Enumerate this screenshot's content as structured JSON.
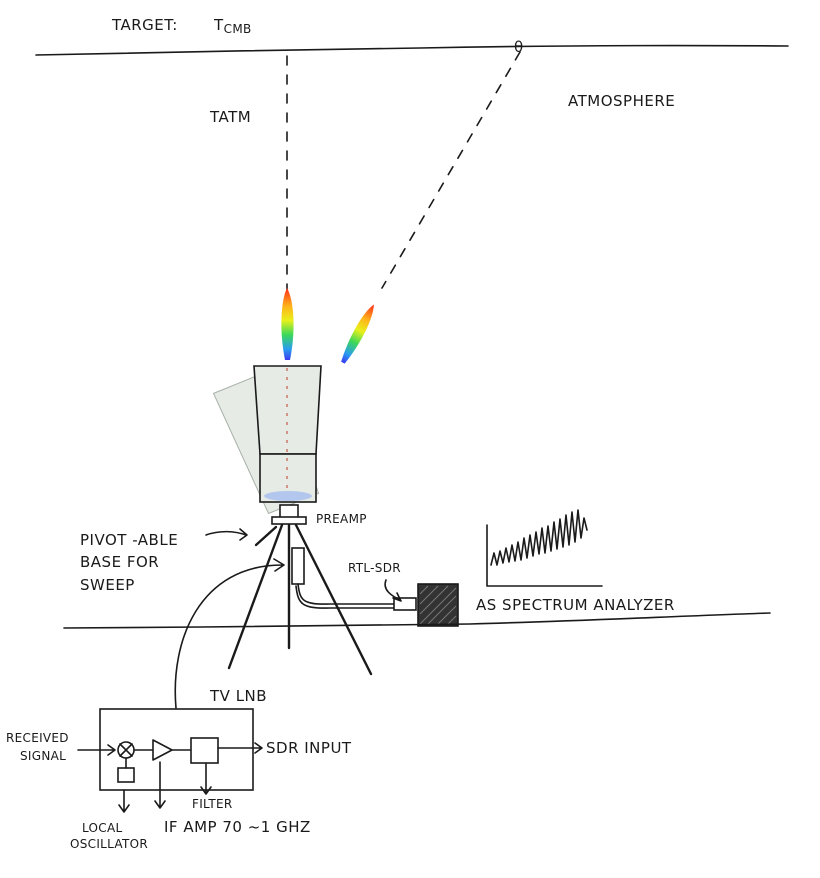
{
  "labels": {
    "target": "TARGET:",
    "tcmb_main": "T",
    "tcmb_sub": "CMB",
    "theta": "θ",
    "tatm": "TATM",
    "atmosphere": "ATMOSPHERE",
    "preamp": "PREAMP",
    "pivot_line1": "PIVOT -ABLE",
    "pivot_line2": "BASE FOR",
    "pivot_line3": "SWEEP",
    "rtl_sdr": "RTL-SDR",
    "spectrum": "AS SPECTRUM ANALYZER",
    "tv_lnb": "TV LNB",
    "received_line1": "RECEIVED",
    "received_line2": "SIGNAL",
    "sdr_input": "SDR INPUT",
    "filter": "FILTER",
    "if_amp": "IF AMP 70 ~1 GHZ",
    "local_line1": "LOCAL",
    "local_line2": "OSCILLATOR"
  },
  "colors": {
    "ink": "#1a1a1a",
    "horn_fill": "#e6ebe6",
    "horn_ghost": "#e2e8e2",
    "sdr_box": "#333333"
  },
  "icons": {
    "mixer": "mixer-x-icon",
    "amplifier": "triangle-amp-icon",
    "filter": "filter-box-icon"
  }
}
